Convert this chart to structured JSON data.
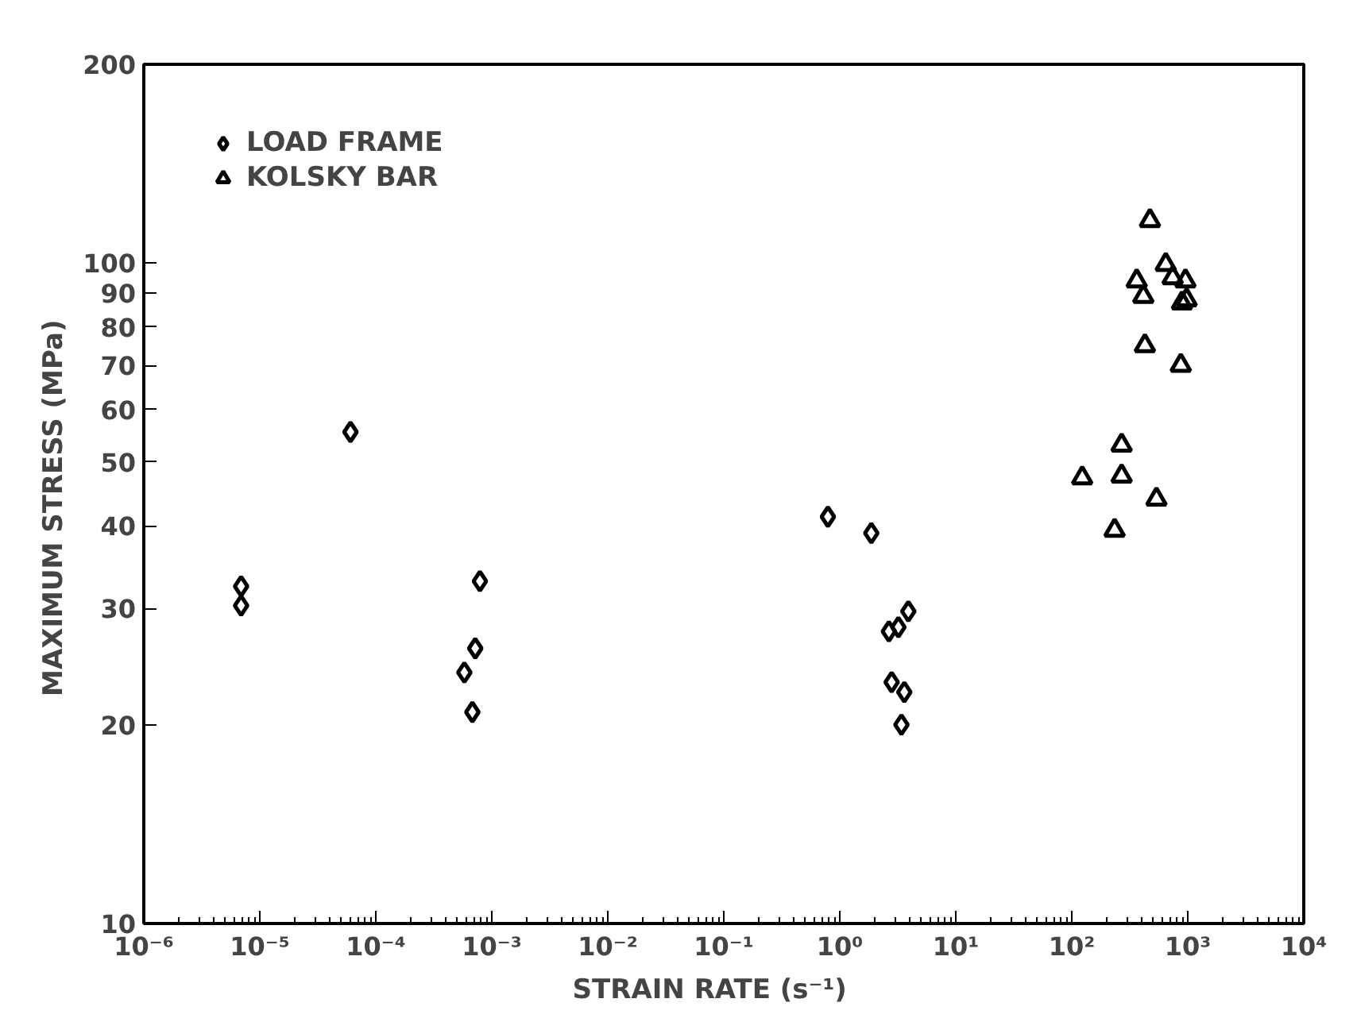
{
  "chart_data": {
    "type": "scatter",
    "xlabel": "STRAIN RATE    (s⁻¹)",
    "ylabel": "MAXIMUM STRESS    (MPa)",
    "log": "xy",
    "grid": false,
    "legend": "top left",
    "xlim": [
      1e-06,
      10000.0
    ],
    "ylim": [
      10,
      200
    ],
    "xticks": [
      {
        "value": 1e-06,
        "label": "10⁻⁶"
      },
      {
        "value": 1e-05,
        "label": "10⁻⁵"
      },
      {
        "value": 0.0001,
        "label": "10⁻⁴"
      },
      {
        "value": 0.001,
        "label": "10⁻³"
      },
      {
        "value": 0.01,
        "label": "10⁻²"
      },
      {
        "value": 0.1,
        "label": "10⁻¹"
      },
      {
        "value": 1,
        "label": "10⁰"
      },
      {
        "value": 10,
        "label": "10¹"
      },
      {
        "value": 100,
        "label": "10²"
      },
      {
        "value": 1000,
        "label": "10³"
      },
      {
        "value": 10000,
        "label": "10⁴"
      }
    ],
    "yticks": [
      10,
      20,
      30,
      40,
      50,
      60,
      70,
      80,
      90,
      100,
      200
    ],
    "series": [
      {
        "name": "LOAD FRAME",
        "color": "#000000",
        "marker": "diamond",
        "x": [
          6.9e-06,
          6.9e-06,
          6.05e-05,
          0.00079,
          0.00072,
          0.00058,
          0.00068,
          0.79,
          1.87,
          3.9,
          3.2,
          2.65,
          2.8,
          3.6,
          3.4
        ],
        "values": [
          32.4,
          30.3,
          55.5,
          33.0,
          26.1,
          24.0,
          20.9,
          41.3,
          39.0,
          29.7,
          28.1,
          27.7,
          23.2,
          22.4,
          20.0
        ]
      },
      {
        "name": "KOLSKY BAR",
        "color": "#000000",
        "marker": "triangle",
        "x": [
          472,
          646,
          363,
          414,
          741,
          955,
          891,
          977,
          427,
          871,
          269,
          123,
          269,
          537,
          234
        ],
        "values": [
          116,
          99.5,
          94,
          89,
          95,
          94,
          87,
          88,
          75,
          70,
          53,
          47.3,
          47.6,
          43.9,
          39.4
        ]
      }
    ]
  }
}
